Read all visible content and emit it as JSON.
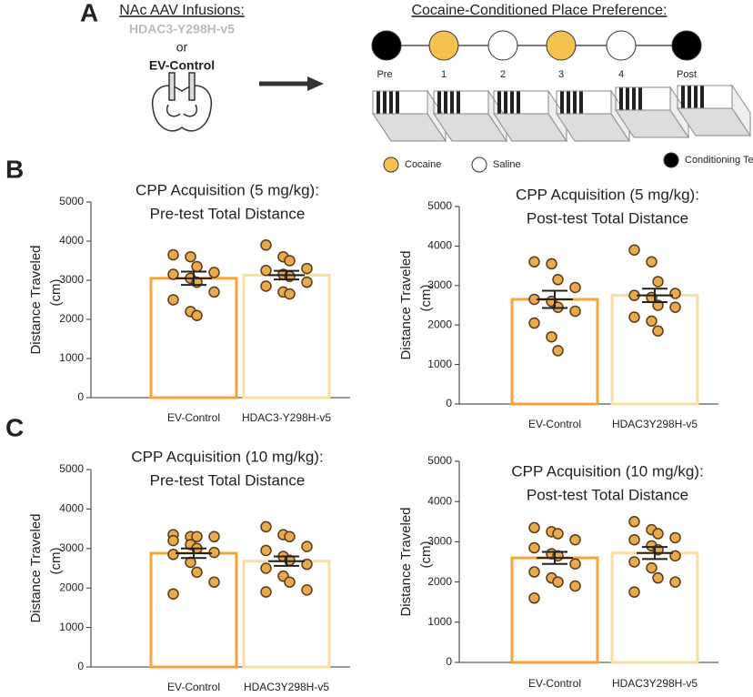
{
  "panel_labels": [
    "A",
    "B",
    "C"
  ],
  "panel_a": {
    "infusion_title": "NAc AAV Infusions:",
    "virus": "HDAC3-Y298H-v5",
    "or": "or",
    "control": "EV-Control",
    "cpp_title": "Cocaine-Conditioned Place Preference:",
    "timeline": [
      {
        "label": "Pre",
        "kind": "test"
      },
      {
        "label": "1",
        "kind": "cocaine"
      },
      {
        "label": "2",
        "kind": "saline"
      },
      {
        "label": "3",
        "kind": "cocaine"
      },
      {
        "label": "4",
        "kind": "saline"
      },
      {
        "label": "Post",
        "kind": "test"
      }
    ],
    "legend": [
      {
        "label": "Cocaine",
        "kind": "cocaine"
      },
      {
        "label": "Saline",
        "kind": "saline"
      },
      {
        "label": "Conditioning Test",
        "kind": "test"
      }
    ],
    "kind_colors": {
      "cocaine": "#f7c150",
      "saline": "#ffffff",
      "test": "#000000"
    }
  },
  "chart_data": [
    {
      "type": "bar",
      "title_lines": [
        "CPP Acquisition (5 mg/kg):",
        "Pre-test Total Distance"
      ],
      "ylabel_lines": [
        "Distance  Traveled",
        "(cm)"
      ],
      "categories": [
        "EV-Control",
        "HDAC3-Y298H-v5"
      ],
      "values": [
        3050,
        3130
      ],
      "errors": [
        170,
        110
      ],
      "colors": [
        "#f5a43a",
        "#f8dea0"
      ],
      "point_color": "#e9a94c",
      "points": [
        [
          3650,
          3600,
          3350,
          3200,
          3150,
          3050,
          2950,
          2700,
          2500,
          2200,
          2100
        ],
        [
          3900,
          3600,
          3500,
          3300,
          3250,
          3150,
          3100,
          2950,
          2850,
          2700,
          2650
        ]
      ],
      "ylim": [
        0,
        5000
      ],
      "yticks": [
        0,
        1000,
        2000,
        3000,
        4000,
        5000
      ]
    },
    {
      "type": "bar",
      "title_lines": [
        "CPP Acquisition (5 mg/kg):",
        "Post-test Total Distance"
      ],
      "ylabel_lines": [
        "Distance  Traveled",
        "(cm)"
      ],
      "categories": [
        "EV-Control",
        "HDAC3Y298H-v5"
      ],
      "values": [
        2650,
        2750
      ],
      "errors": [
        220,
        170
      ],
      "colors": [
        "#f5a43a",
        "#f8dea0"
      ],
      "point_color": "#e9a94c",
      "points": [
        [
          3600,
          3550,
          3150,
          2950,
          2650,
          2600,
          2450,
          2350,
          2050,
          1700,
          1350
        ],
        [
          3900,
          3600,
          3100,
          2800,
          2750,
          2700,
          2500,
          2450,
          2200,
          2100,
          1850
        ]
      ],
      "ylim": [
        0,
        5000
      ],
      "yticks": [
        0,
        1000,
        2000,
        3000,
        4000,
        5000
      ]
    },
    {
      "type": "bar",
      "title_lines": [
        "CPP Acquisition (10 mg/kg):",
        "Pre-test Total Distance"
      ],
      "ylabel_lines": [
        "Distance  Traveled",
        "(cm)"
      ],
      "categories": [
        "EV-Control",
        "HDAC3Y298H-v5"
      ],
      "values": [
        2880,
        2680
      ],
      "errors": [
        120,
        120
      ],
      "colors": [
        "#f5a43a",
        "#f8dea0"
      ],
      "point_color": "#e9a94c",
      "points": [
        [
          3350,
          3300,
          3300,
          3300,
          3200,
          3100,
          3000,
          2900,
          2850,
          2650,
          2400,
          2150,
          1850
        ],
        [
          3550,
          3350,
          3300,
          3050,
          2950,
          2800,
          2700,
          2600,
          2500,
          2300,
          2150,
          1950,
          1900
        ]
      ],
      "ylim": [
        0,
        5000
      ],
      "yticks": [
        0,
        1000,
        2000,
        3000,
        4000,
        5000
      ]
    },
    {
      "type": "bar",
      "title_lines": [
        "CPP Acquisition (10 mg/kg):",
        "Post-test Total Distance"
      ],
      "ylabel_lines": [
        "Distance  Traveled",
        "(cm)"
      ],
      "categories": [
        "EV-Control",
        "HDAC3Y298H-v5"
      ],
      "values": [
        2600,
        2720
      ],
      "errors": [
        150,
        150
      ],
      "colors": [
        "#f5a43a",
        "#f8dea0"
      ],
      "point_color": "#e9a94c",
      "points": [
        [
          3350,
          3250,
          3200,
          3050,
          2850,
          2700,
          2650,
          2450,
          2250,
          2100,
          2000,
          1900,
          1600
        ],
        [
          3500,
          3300,
          3200,
          3100,
          3050,
          2900,
          2800,
          2650,
          2500,
          2350,
          2100,
          2000,
          1750
        ]
      ],
      "ylim": [
        0,
        5000
      ],
      "yticks": [
        0,
        1000,
        2000,
        3000,
        4000,
        5000
      ]
    }
  ]
}
